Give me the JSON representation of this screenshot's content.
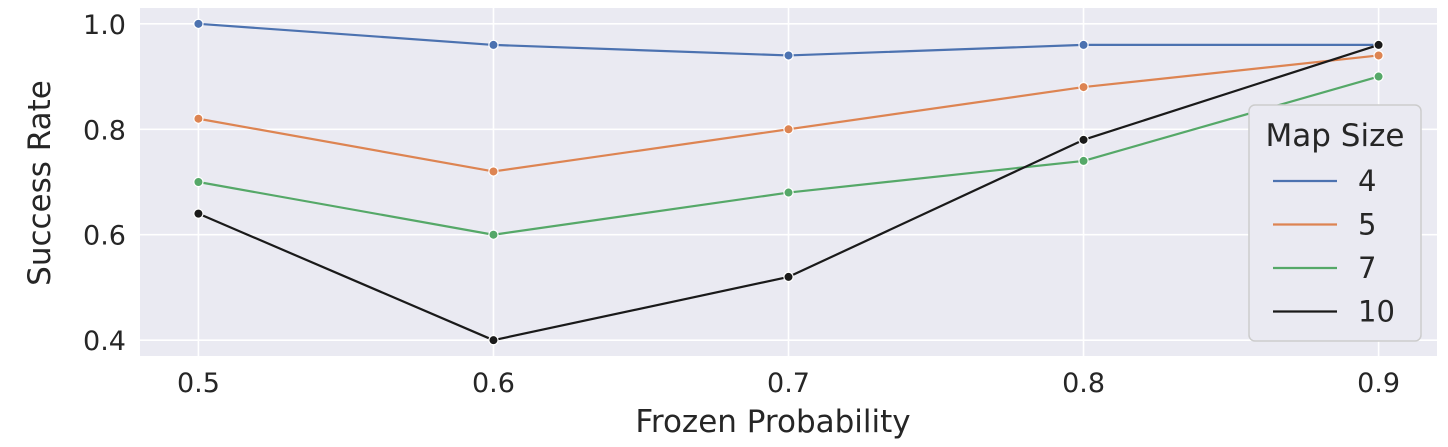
{
  "chart_data": {
    "type": "line",
    "xlabel": "Frozen Probability",
    "ylabel": "Success Rate",
    "x": [
      0.5,
      0.6,
      0.7,
      0.8,
      0.9
    ],
    "x_tick_labels": [
      "0.5",
      "0.6",
      "0.7",
      "0.8",
      "0.9"
    ],
    "xlim": [
      0.4802,
      0.9198
    ],
    "ylim": [
      0.37,
      1.03
    ],
    "y_ticks": [
      0.4,
      0.6,
      0.8,
      1.0
    ],
    "y_tick_labels": [
      "0.4",
      "0.6",
      "0.8",
      "1.0"
    ],
    "grid": true,
    "background_color": "#eaeaf2",
    "legend": {
      "title": "Map Size",
      "position": "right"
    },
    "series": [
      {
        "name": "4",
        "color": "#4c72b0",
        "values": [
          1.0,
          0.96,
          0.94,
          0.96,
          0.96
        ]
      },
      {
        "name": "5",
        "color": "#dd8452",
        "values": [
          0.82,
          0.72,
          0.8,
          0.88,
          0.94
        ]
      },
      {
        "name": "7",
        "color": "#55a868",
        "values": [
          0.7,
          0.6,
          0.68,
          0.74,
          0.9
        ]
      },
      {
        "name": "10",
        "color": "#1a1a1a",
        "values": [
          0.64,
          0.4,
          0.52,
          0.78,
          0.96
        ]
      }
    ]
  }
}
